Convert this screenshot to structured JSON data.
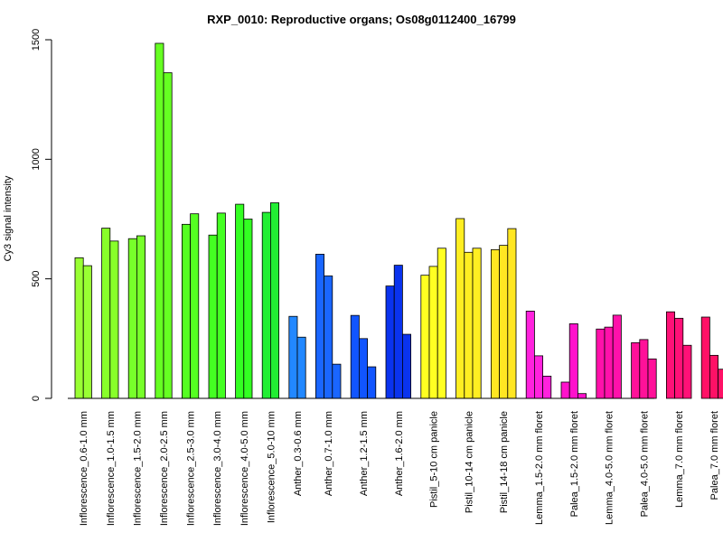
{
  "chart_data": {
    "type": "bar",
    "title": "RXP_0010: Reproductive organs; Os08g0112400_16799",
    "ylabel": "Cy3 signal intensity",
    "xlabel": "",
    "ylim": [
      0,
      1500
    ],
    "yticks": [
      0,
      500,
      1000,
      1500
    ],
    "grid": false,
    "legend": "none",
    "groups": [
      {
        "label": "Inflorescence_0.6-1.0 mm",
        "color": "#99ff33",
        "values": [
          588,
          555
        ]
      },
      {
        "label": "Inflorescence_1.0-1.5 mm",
        "color": "#88ff2a",
        "values": [
          712,
          658
        ]
      },
      {
        "label": "Inflorescence_1.5-2.0 mm",
        "color": "#77ff2a",
        "values": [
          668,
          680
        ]
      },
      {
        "label": "Inflorescence_2.0-2.5 mm",
        "color": "#66ff22",
        "values": [
          1485,
          1362
        ]
      },
      {
        "label": "Inflorescence_2.5-3.0 mm",
        "color": "#55ff22",
        "values": [
          728,
          772
        ]
      },
      {
        "label": "Inflorescence_3.0-4.0 mm",
        "color": "#44ff22",
        "values": [
          683,
          775
        ]
      },
      {
        "label": "Inflorescence_4.0-5.0 mm",
        "color": "#33ff22",
        "values": [
          812,
          750
        ]
      },
      {
        "label": "Inflorescence_5.0-10 mm",
        "color": "#22ee33",
        "values": [
          778,
          818
        ]
      },
      {
        "label": "Anther_0.3-0.6 mm",
        "color": "#2288ff",
        "values": [
          343,
          256
        ]
      },
      {
        "label": "Anther_0.7-1.0 mm",
        "color": "#1a66ff",
        "values": [
          603,
          512,
          143
        ]
      },
      {
        "label": "Anther_1.2-1.5 mm",
        "color": "#1155ff",
        "values": [
          347,
          250,
          132
        ]
      },
      {
        "label": "Anther_1.6-2.0 mm",
        "color": "#0a33ee",
        "values": [
          470,
          557,
          268
        ]
      },
      {
        "label": "Pistil_5-10 cm panicle",
        "color": "#ffff22",
        "values": [
          515,
          552,
          628
        ]
      },
      {
        "label": "Pistil_10-14 cm panicle",
        "color": "#ffee22",
        "values": [
          752,
          611,
          628
        ]
      },
      {
        "label": "Pistil_14-18 cm panicle",
        "color": "#ffe622",
        "values": [
          622,
          640,
          710
        ]
      },
      {
        "label": "Lemma_1.5-2.0 mm floret",
        "color": "#ff22dd",
        "values": [
          365,
          178,
          93
        ]
      },
      {
        "label": "Palea_1.5-2.0 mm floret",
        "color": "#ff11cc",
        "values": [
          68,
          312,
          20
        ]
      },
      {
        "label": "Lemma_4.0-5.0 mm floret",
        "color": "#ff11aa",
        "values": [
          290,
          298,
          348
        ]
      },
      {
        "label": "Palea_4.0-5.0 mm floret",
        "color": "#ff1199",
        "values": [
          233,
          246,
          165
        ]
      },
      {
        "label": "Lemma_7.0 mm floret",
        "color": "#ff1177",
        "values": [
          362,
          335,
          222
        ]
      },
      {
        "label": "Palea_7.0 mm floret",
        "color": "#ff1166",
        "values": [
          340,
          180,
          122
        ]
      }
    ]
  }
}
